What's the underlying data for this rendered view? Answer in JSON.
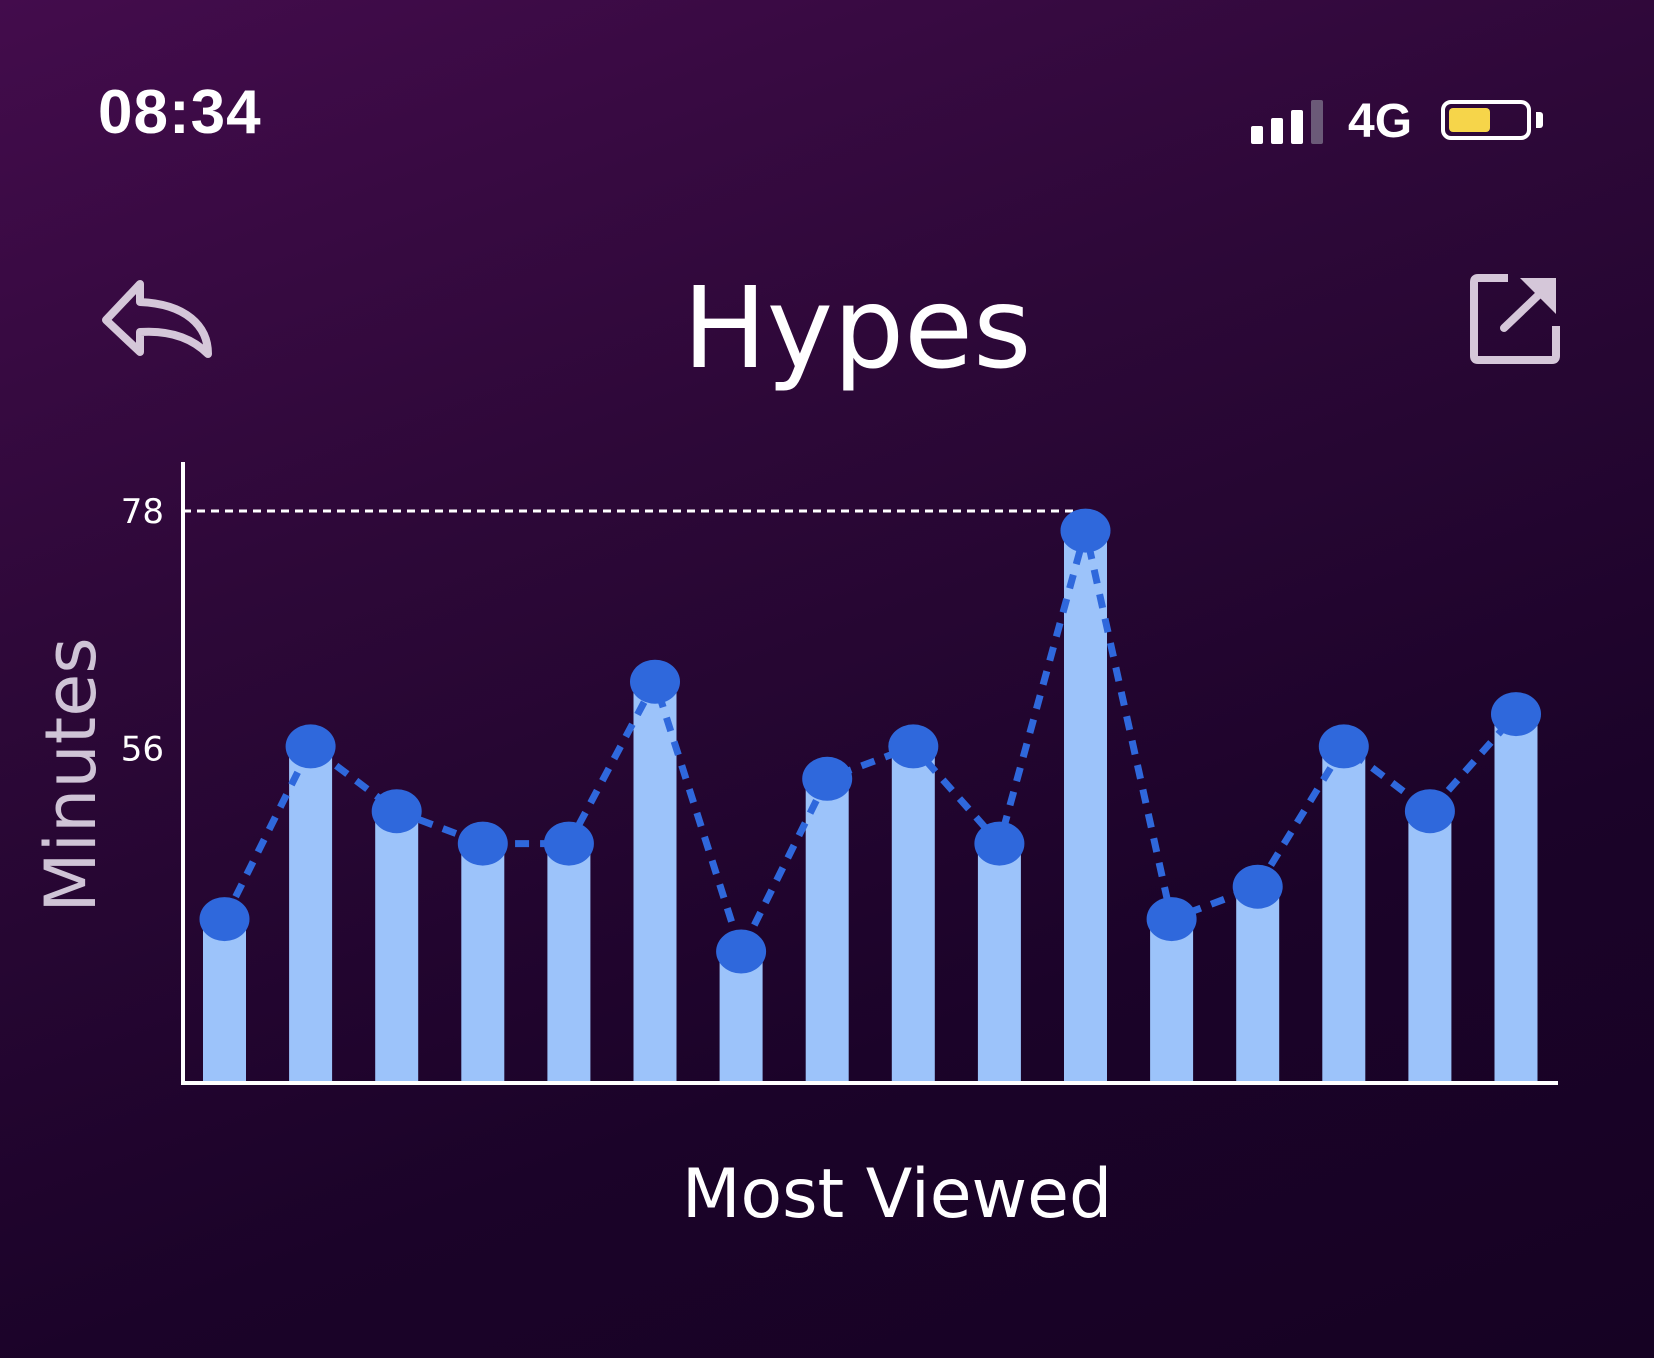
{
  "status_bar": {
    "time": "08:34",
    "network": "4G",
    "signal_icon": "cellular-signal-icon",
    "battery_icon": "battery-icon",
    "signal_bars_active": 3,
    "signal_bars_total": 4,
    "battery_level": 0.55,
    "battery_color": "#f6d54a"
  },
  "header": {
    "title": "Hypes",
    "back_icon": "back-arrow-icon",
    "share_icon": "share-external-icon"
  },
  "chart_data": {
    "type": "bar",
    "title": "",
    "xlabel": "Most Viewed",
    "ylabel": "Minutes",
    "categories": [
      "",
      "",
      "",
      "",
      "",
      "",
      "",
      "",
      "",
      "",
      "",
      "",
      "",
      "",
      "",
      ""
    ],
    "series": [
      {
        "values": [
          40,
          56,
          50,
          47,
          47,
          62,
          37,
          53,
          56,
          47,
          76,
          40,
          43,
          56,
          50,
          59
        ]
      }
    ],
    "overlay": "dotted-line-with-markers",
    "reference_line": {
      "value": 78,
      "style": "dotted"
    },
    "y_ticks": [
      56,
      78
    ],
    "y_tick_labels": [
      "56",
      "78"
    ],
    "ylim": [
      25,
      78
    ],
    "grid": false,
    "legend": "none",
    "colors": {
      "bar": "#9cc3fa",
      "marker": "#2f68dc",
      "line": "#2f68dc",
      "axis": "#ffffff",
      "reference_line": "#ffffff"
    }
  }
}
